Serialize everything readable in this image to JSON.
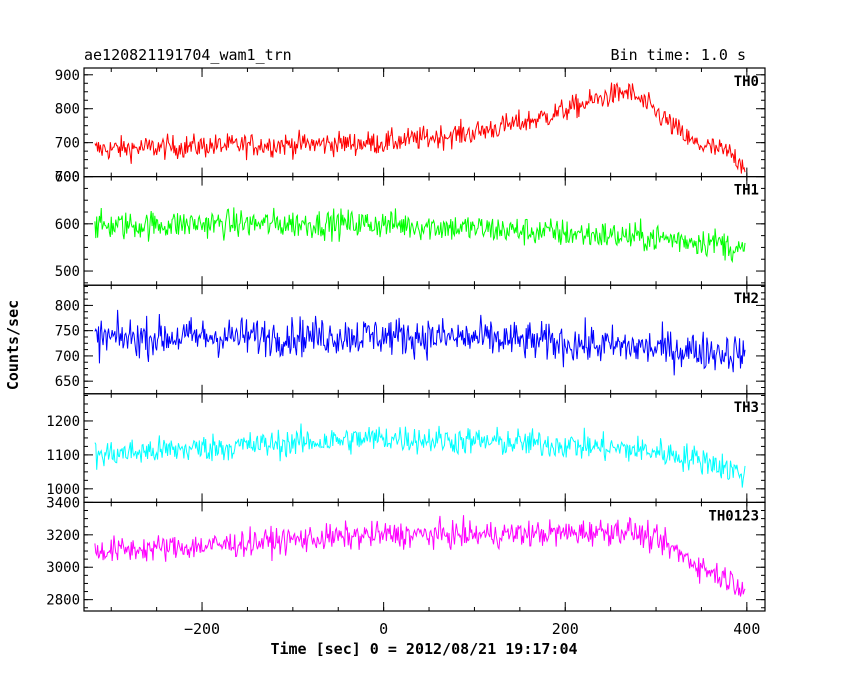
{
  "chart_data": {
    "type": "line",
    "title": "ae120821191704_wam1_trn",
    "bin_label": "Bin time: 1.0 s",
    "xlabel": "Time [sec] 0 = 2012/08/21 19:17:04",
    "ylabel": "Counts/sec",
    "xlim": [
      -330,
      420
    ],
    "xticks": [
      -200,
      0,
      200,
      400
    ],
    "xtick_labels": [
      "−200",
      "0",
      "200",
      "400"
    ],
    "x_range": [
      -318,
      398
    ],
    "grid": false,
    "panels": [
      {
        "name": "TH0",
        "color": "#ff0000",
        "ylim": [
          600,
          920
        ],
        "yticks": [
          600,
          700,
          800,
          900
        ],
        "ytick_labels": [
          "600",
          "700",
          "800",
          "900"
        ],
        "baseline": [
          [
            -318,
            680
          ],
          [
            -200,
            690
          ],
          [
            -100,
            695
          ],
          [
            0,
            700
          ],
          [
            100,
            730
          ],
          [
            170,
            770
          ],
          [
            250,
            840
          ],
          [
            270,
            850
          ],
          [
            300,
            790
          ],
          [
            340,
            700
          ],
          [
            380,
            670
          ],
          [
            398,
            635
          ]
        ],
        "noise": 32
      },
      {
        "name": "TH1",
        "color": "#00ff00",
        "ylim": [
          470,
          700
        ],
        "yticks": [
          500,
          600,
          700
        ],
        "ytick_labels": [
          "500",
          "600",
          "700"
        ],
        "baseline": [
          [
            -318,
            595
          ],
          [
            -200,
            600
          ],
          [
            0,
            600
          ],
          [
            100,
            590
          ],
          [
            200,
            580
          ],
          [
            300,
            570
          ],
          [
            370,
            560
          ],
          [
            398,
            540
          ]
        ],
        "noise": 28
      },
      {
        "name": "TH2",
        "color": "#0000ff",
        "ylim": [
          625,
          840
        ],
        "yticks": [
          650,
          700,
          750,
          800
        ],
        "ytick_labels": [
          "650",
          "700",
          "750",
          "800"
        ],
        "baseline": [
          [
            -318,
            735
          ],
          [
            -200,
            738
          ],
          [
            0,
            740
          ],
          [
            100,
            735
          ],
          [
            200,
            725
          ],
          [
            300,
            715
          ],
          [
            398,
            705
          ]
        ],
        "noise": 35
      },
      {
        "name": "TH3",
        "color": "#00ffff",
        "ylim": [
          960,
          1280
        ],
        "yticks": [
          1000,
          1100,
          1200
        ],
        "ytick_labels": [
          "1000",
          "1100",
          "1200"
        ],
        "baseline": [
          [
            -318,
            1100
          ],
          [
            -200,
            1120
          ],
          [
            0,
            1150
          ],
          [
            100,
            1140
          ],
          [
            200,
            1130
          ],
          [
            300,
            1110
          ],
          [
            360,
            1080
          ],
          [
            398,
            1040
          ]
        ],
        "noise": 38
      },
      {
        "name": "TH0123",
        "color": "#ff00ff",
        "ylim": [
          2730,
          3400
        ],
        "yticks": [
          2800,
          3000,
          3200,
          3400
        ],
        "ytick_labels": [
          "2800",
          "3000",
          "3200",
          "3400"
        ],
        "baseline": [
          [
            -318,
            3100
          ],
          [
            -200,
            3130
          ],
          [
            -100,
            3170
          ],
          [
            0,
            3200
          ],
          [
            100,
            3200
          ],
          [
            200,
            3210
          ],
          [
            270,
            3230
          ],
          [
            310,
            3140
          ],
          [
            350,
            3000
          ],
          [
            398,
            2880
          ]
        ],
        "noise": 75
      }
    ]
  }
}
